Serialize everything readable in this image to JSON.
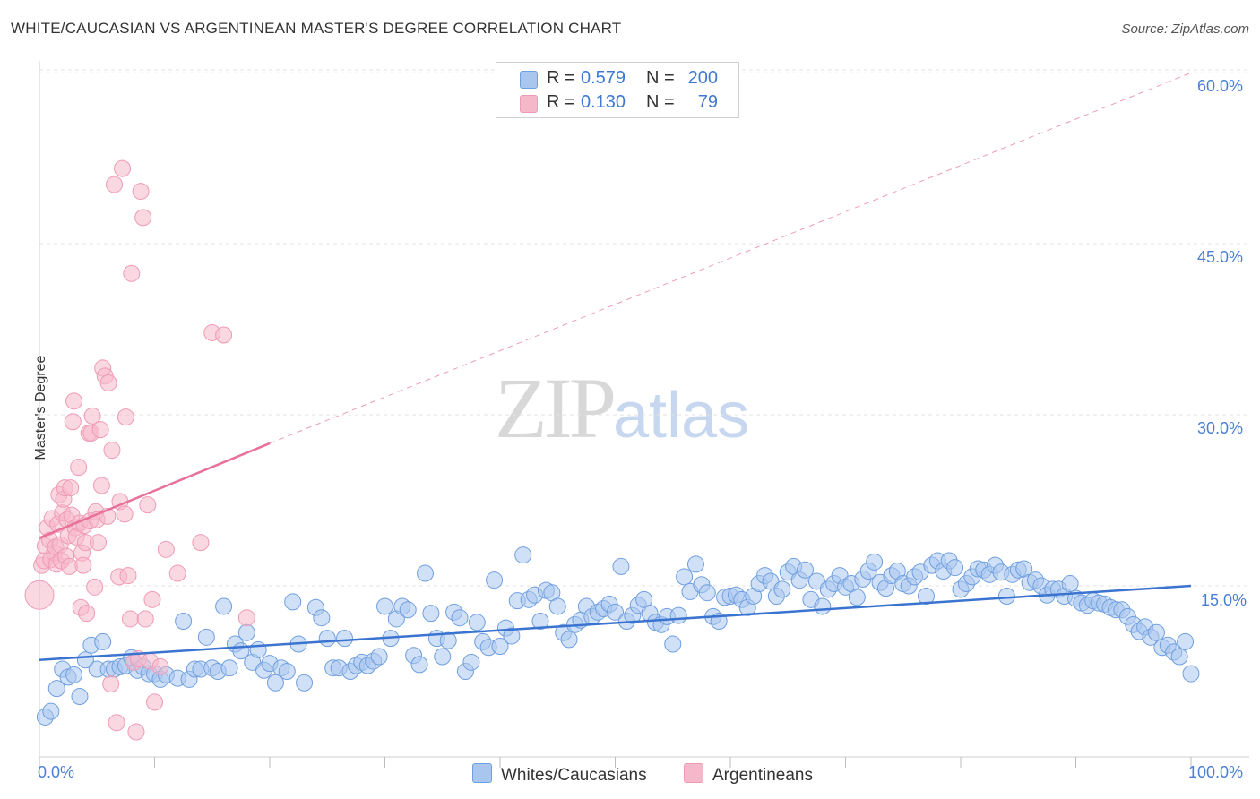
{
  "header": {
    "title": "WHITE/CAUCASIAN VS ARGENTINEAN MASTER'S DEGREE CORRELATION CHART",
    "source": "Source: ZipAtlas.com"
  },
  "watermark": {
    "zip": "ZIP",
    "atlas": "atlas"
  },
  "legend": {
    "rows": [
      {
        "r_label": "R =",
        "r_value": "0.579",
        "n_label": "N =",
        "n_value": "200",
        "color": "#a9c6ef"
      },
      {
        "r_label": "R =",
        "r_value": "0.130",
        "n_label": "N =",
        "n_value": "79",
        "color": "#f5b8cb"
      }
    ]
  },
  "bottom_legend": {
    "series1": "Whites/Caucasians",
    "series2": "Argentineans"
  },
  "chart_data": {
    "type": "scatter",
    "ylabel": "Master's Degree",
    "xlabel": "",
    "x_tick_labels": [
      "0.0%",
      "100.0%"
    ],
    "y_tick_labels": [
      "15.0%",
      "30.0%",
      "45.0%",
      "60.0%"
    ],
    "y_ticks": [
      15,
      30,
      45,
      60
    ],
    "xlim": [
      0,
      100
    ],
    "ylim": [
      0,
      61.5
    ],
    "grid": true,
    "legend_position": "top-center",
    "series": [
      {
        "name": "Whites/Caucasians",
        "color": "#6f9fe0",
        "fill": "#a9c6ef",
        "trend": {
          "x": [
            0,
            100
          ],
          "y": [
            8.5,
            15.0
          ],
          "style": "solid",
          "color": "#3a74d0"
        },
        "points": [
          [
            0.5,
            3.5
          ],
          [
            1,
            4
          ],
          [
            1.5,
            6
          ],
          [
            2,
            7.7
          ],
          [
            2.5,
            7
          ],
          [
            3,
            7.2
          ],
          [
            3.5,
            5.3
          ],
          [
            4,
            8.5
          ],
          [
            4.5,
            9.8
          ],
          [
            5,
            7.7
          ],
          [
            5.5,
            10.1
          ],
          [
            6,
            7.7
          ],
          [
            6.5,
            7.7
          ],
          [
            7,
            7.9
          ],
          [
            7.5,
            8
          ],
          [
            8,
            8.7
          ],
          [
            8.5,
            7.6
          ],
          [
            9,
            7.9
          ],
          [
            9.5,
            7.3
          ],
          [
            10,
            7.3
          ],
          [
            10.5,
            6.8
          ],
          [
            11,
            7.2
          ],
          [
            12,
            6.9
          ],
          [
            12.5,
            11.9
          ],
          [
            13,
            6.8
          ],
          [
            13.5,
            7.7
          ],
          [
            14,
            7.7
          ],
          [
            14.5,
            10.5
          ],
          [
            15,
            7.8
          ],
          [
            15.5,
            7.5
          ],
          [
            16,
            13.2
          ],
          [
            16.5,
            7.8
          ],
          [
            17,
            9.9
          ],
          [
            17.5,
            9.3
          ],
          [
            18,
            10.9
          ],
          [
            18.5,
            8.3
          ],
          [
            19,
            9.4
          ],
          [
            19.5,
            7.6
          ],
          [
            20,
            8.2
          ],
          [
            20.5,
            6.5
          ],
          [
            21,
            7.8
          ],
          [
            21.5,
            7.5
          ],
          [
            22,
            13.6
          ],
          [
            22.5,
            9.9
          ],
          [
            23,
            6.5
          ],
          [
            24,
            13.1
          ],
          [
            24.5,
            12.2
          ],
          [
            25,
            10.4
          ],
          [
            25.5,
            7.8
          ],
          [
            26,
            7.8
          ],
          [
            26.5,
            10.4
          ],
          [
            27,
            7.5
          ],
          [
            27.5,
            8
          ],
          [
            28,
            8.3
          ],
          [
            28.5,
            8
          ],
          [
            29,
            8.4
          ],
          [
            29.5,
            8.8
          ],
          [
            30,
            13.2
          ],
          [
            30.5,
            10.4
          ],
          [
            31,
            12.1
          ],
          [
            31.5,
            13.2
          ],
          [
            32,
            12.9
          ],
          [
            32.5,
            8.9
          ],
          [
            33,
            8.1
          ],
          [
            33.5,
            16.1
          ],
          [
            34,
            12.6
          ],
          [
            34.5,
            10.4
          ],
          [
            35,
            8.8
          ],
          [
            35.5,
            10.2
          ],
          [
            36,
            12.7
          ],
          [
            36.5,
            12.2
          ],
          [
            37,
            7.5
          ],
          [
            37.5,
            8.3
          ],
          [
            38,
            11.8
          ],
          [
            38.5,
            10.1
          ],
          [
            39,
            9.6
          ],
          [
            39.5,
            15.5
          ],
          [
            40,
            9.7
          ],
          [
            40.5,
            11.3
          ],
          [
            41,
            10.6
          ],
          [
            41.5,
            13.7
          ],
          [
            42,
            17.7
          ],
          [
            42.5,
            13.8
          ],
          [
            43,
            14.2
          ],
          [
            43.5,
            11.9
          ],
          [
            44,
            14.6
          ],
          [
            44.5,
            14.4
          ],
          [
            45,
            13.2
          ],
          [
            45.5,
            10.9
          ],
          [
            46,
            10.3
          ],
          [
            46.5,
            11.6
          ],
          [
            47,
            12
          ],
          [
            47.5,
            13.2
          ],
          [
            48,
            12.3
          ],
          [
            48.5,
            12.7
          ],
          [
            49,
            13
          ],
          [
            49.5,
            13.4
          ],
          [
            50,
            12.7
          ],
          [
            50.5,
            16.7
          ],
          [
            51,
            11.9
          ],
          [
            51.5,
            12.4
          ],
          [
            52,
            13.3
          ],
          [
            52.5,
            13.8
          ],
          [
            53,
            12.6
          ],
          [
            53.5,
            11.8
          ],
          [
            54,
            11.6
          ],
          [
            54.5,
            12.3
          ],
          [
            55,
            9.9
          ],
          [
            55.5,
            12.4
          ],
          [
            56,
            15.8
          ],
          [
            56.5,
            14.5
          ],
          [
            57,
            16.9
          ],
          [
            57.5,
            15.1
          ],
          [
            58,
            14.4
          ],
          [
            58.5,
            12.3
          ],
          [
            59,
            11.9
          ],
          [
            59.5,
            14
          ],
          [
            60,
            14.1
          ],
          [
            60.5,
            14.2
          ],
          [
            61,
            13.8
          ],
          [
            61.5,
            13.1
          ],
          [
            62,
            14.1
          ],
          [
            62.5,
            15.2
          ],
          [
            63,
            15.9
          ],
          [
            63.5,
            15.4
          ],
          [
            64,
            14.1
          ],
          [
            64.5,
            14.7
          ],
          [
            65,
            16.2
          ],
          [
            65.5,
            16.7
          ],
          [
            66,
            15.5
          ],
          [
            66.5,
            16.4
          ],
          [
            67,
            13.8
          ],
          [
            67.5,
            15.4
          ],
          [
            68,
            13.2
          ],
          [
            68.5,
            14.7
          ],
          [
            69,
            15.2
          ],
          [
            69.5,
            15.9
          ],
          [
            70,
            14.9
          ],
          [
            70.5,
            15.2
          ],
          [
            71,
            14
          ],
          [
            71.5,
            15.6
          ],
          [
            72,
            16.3
          ],
          [
            72.5,
            17.1
          ],
          [
            73,
            15.3
          ],
          [
            73.5,
            14.8
          ],
          [
            74,
            15.9
          ],
          [
            74.5,
            16.3
          ],
          [
            75,
            15.2
          ],
          [
            75.5,
            15
          ],
          [
            76,
            15.8
          ],
          [
            76.5,
            16.2
          ],
          [
            77,
            14.1
          ],
          [
            77.5,
            16.8
          ],
          [
            78,
            17.2
          ],
          [
            78.5,
            16.3
          ],
          [
            79,
            17.2
          ],
          [
            79.5,
            16.6
          ],
          [
            80,
            14.7
          ],
          [
            80.5,
            15.2
          ],
          [
            81,
            15.8
          ],
          [
            81.5,
            16.5
          ],
          [
            82,
            16.4
          ],
          [
            82.5,
            16
          ],
          [
            83,
            16.8
          ],
          [
            83.5,
            16.2
          ],
          [
            84,
            14.1
          ],
          [
            84.5,
            16
          ],
          [
            85,
            16.4
          ],
          [
            85.5,
            16.5
          ],
          [
            86,
            15.3
          ],
          [
            86.5,
            15.5
          ],
          [
            87,
            15
          ],
          [
            87.5,
            14.2
          ],
          [
            88,
            14.7
          ],
          [
            88.5,
            14.7
          ],
          [
            89,
            14.1
          ],
          [
            89.5,
            15.2
          ],
          [
            90,
            13.9
          ],
          [
            90.5,
            13.5
          ],
          [
            91,
            13.3
          ],
          [
            91.5,
            13.7
          ],
          [
            92,
            13.5
          ],
          [
            92.5,
            13.4
          ],
          [
            93,
            13.1
          ],
          [
            93.5,
            12.9
          ],
          [
            94,
            12.9
          ],
          [
            94.5,
            12.3
          ],
          [
            95,
            11.6
          ],
          [
            95.5,
            11
          ],
          [
            96,
            11.4
          ],
          [
            96.5,
            10.5
          ],
          [
            97,
            10.9
          ],
          [
            97.5,
            9.6
          ],
          [
            98,
            9.8
          ],
          [
            98.5,
            9.2
          ],
          [
            99,
            8.8
          ],
          [
            99.5,
            10.1
          ],
          [
            100,
            7.3
          ]
        ]
      },
      {
        "name": "Argentineans",
        "color": "#ef9ab5",
        "fill": "#f5b8cb",
        "trend": {
          "x": [
            0,
            20
          ],
          "y": [
            19.2,
            27.5
          ],
          "style": "solid",
          "color": "#e8709a",
          "extension": {
            "x": [
              20,
              100
            ],
            "y": [
              27.5,
              60.0
            ],
            "style": "dashed"
          }
        },
        "points": [
          [
            0,
            14.2
          ],
          [
            0.2,
            16.8
          ],
          [
            0.4,
            17.2
          ],
          [
            0.5,
            18.5
          ],
          [
            0.7,
            20.1
          ],
          [
            0.9,
            19
          ],
          [
            1,
            17.3
          ],
          [
            1.1,
            20.9
          ],
          [
            1.3,
            17.9
          ],
          [
            1.4,
            18.4
          ],
          [
            1.5,
            16.9
          ],
          [
            1.6,
            20.4
          ],
          [
            1.7,
            23
          ],
          [
            1.8,
            18.6
          ],
          [
            1.9,
            17.2
          ],
          [
            2,
            21.4
          ],
          [
            2.1,
            22.6
          ],
          [
            2.2,
            23.6
          ],
          [
            2.3,
            17.6
          ],
          [
            2.4,
            20.8
          ],
          [
            2.5,
            19.4
          ],
          [
            2.6,
            16.7
          ],
          [
            2.7,
            23.6
          ],
          [
            2.8,
            21.2
          ],
          [
            2.9,
            29.4
          ],
          [
            3,
            31.2
          ],
          [
            3.1,
            20.1
          ],
          [
            3.2,
            19.3
          ],
          [
            3.4,
            25.4
          ],
          [
            3.5,
            20.5
          ],
          [
            3.6,
            13.1
          ],
          [
            3.7,
            17.9
          ],
          [
            3.8,
            16.8
          ],
          [
            3.9,
            20.3
          ],
          [
            4,
            18.8
          ],
          [
            4.1,
            12.6
          ],
          [
            4.3,
            28.4
          ],
          [
            4.4,
            20.7
          ],
          [
            4.5,
            28.4
          ],
          [
            4.6,
            29.9
          ],
          [
            4.8,
            14.9
          ],
          [
            4.9,
            21.5
          ],
          [
            5,
            20.8
          ],
          [
            5.1,
            18.8
          ],
          [
            5.3,
            28.7
          ],
          [
            5.4,
            23.8
          ],
          [
            5.5,
            34.1
          ],
          [
            5.7,
            33.4
          ],
          [
            5.9,
            21.1
          ],
          [
            6,
            32.8
          ],
          [
            6.2,
            6.4
          ],
          [
            6.3,
            26.9
          ],
          [
            6.5,
            50.2
          ],
          [
            6.7,
            3
          ],
          [
            6.9,
            15.8
          ],
          [
            7,
            22.4
          ],
          [
            7.2,
            51.6
          ],
          [
            7.4,
            21.3
          ],
          [
            7.5,
            29.8
          ],
          [
            7.7,
            15.9
          ],
          [
            7.9,
            12.1
          ],
          [
            8,
            42.4
          ],
          [
            8.2,
            8.3
          ],
          [
            8.4,
            2.2
          ],
          [
            8.6,
            8.6
          ],
          [
            8.8,
            49.6
          ],
          [
            9,
            47.3
          ],
          [
            9.2,
            12.1
          ],
          [
            9.4,
            22.1
          ],
          [
            9.6,
            8.4
          ],
          [
            9.8,
            13.8
          ],
          [
            10,
            4.8
          ],
          [
            10.5,
            7.9
          ],
          [
            11,
            18.2
          ],
          [
            12,
            16.1
          ],
          [
            14,
            18.8
          ],
          [
            15,
            37.2
          ],
          [
            16,
            37
          ],
          [
            18,
            12.2
          ]
        ]
      }
    ]
  }
}
